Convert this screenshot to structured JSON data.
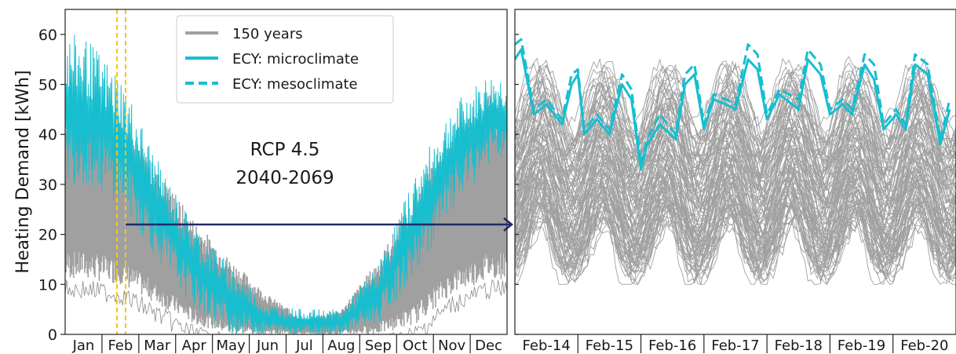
{
  "chart_data": [
    {
      "type": "line",
      "panel": "annual",
      "ylabel": "Heating Demand [kWh]",
      "ylim": [
        0,
        65
      ],
      "yticks": [
        0,
        10,
        20,
        30,
        40,
        50,
        60
      ],
      "categories": [
        "Jan",
        "Feb",
        "Mar",
        "Apr",
        "May",
        "Jun",
        "Jul",
        "Aug",
        "Sep",
        "Oct",
        "Nov",
        "Dec"
      ],
      "annotation": [
        "RCP 4.5",
        "2040-2069"
      ],
      "legend": {
        "position": "top-center",
        "entries": [
          {
            "label": "150 years",
            "color": "#a0a0a0",
            "style": "solid"
          },
          {
            "label": "ECY: microclimate",
            "color": "#17becf",
            "style": "solid"
          },
          {
            "label": "ECY: mesoclimate",
            "color": "#17becf",
            "style": "dashed"
          }
        ]
      },
      "highlight_window": {
        "color": "#f5c518",
        "start": "Feb-14",
        "end": "Feb-20"
      },
      "series": [
        {
          "name": "150 years",
          "color": "#a0a0a0",
          "upper_envelope_by_month": [
            49,
            44,
            33,
            23,
            15,
            8,
            3,
            5,
            15,
            28,
            40,
            48
          ],
          "lower_envelope_by_month": [
            11,
            10,
            6,
            2,
            0,
            0,
            0,
            0,
            0,
            2,
            8,
            11
          ]
        },
        {
          "name": "ECY: microclimate",
          "color": "#17becf",
          "upper_envelope_by_month": [
            60,
            52,
            35,
            22,
            14,
            6,
            5,
            5,
            14,
            32,
            46,
            52
          ],
          "lower_envelope_by_month": [
            30,
            26,
            15,
            5,
            0,
            0,
            0,
            0,
            2,
            12,
            24,
            34
          ]
        }
      ]
    },
    {
      "type": "line",
      "panel": "week",
      "ylim": [
        0,
        65
      ],
      "categories": [
        "Feb-14",
        "Feb-15",
        "Feb-16",
        "Feb-17",
        "Feb-18",
        "Feb-19",
        "Feb-20"
      ],
      "series": [
        {
          "name": "ECY: microclimate",
          "color": "#17becf",
          "style": "solid",
          "x": [
            0,
            0.1,
            0.3,
            0.5,
            0.75,
            0.9,
            1.0,
            1.1,
            1.3,
            1.5,
            1.7,
            1.85,
            2.0,
            2.1,
            2.3,
            2.55,
            2.7,
            2.85,
            3.0,
            3.15,
            3.35,
            3.5,
            3.7,
            3.85,
            4.0,
            4.2,
            4.5,
            4.65,
            4.85,
            5.0,
            5.2,
            5.35,
            5.55,
            5.7,
            5.85,
            6.05,
            6.2,
            6.35,
            6.55,
            6.75,
            6.9
          ],
          "y": [
            55,
            57,
            44,
            46,
            42,
            50,
            52,
            40,
            43,
            40,
            50,
            47,
            33,
            38,
            42,
            39,
            50,
            52,
            41,
            47,
            46,
            45,
            55,
            53,
            43,
            48,
            45,
            55,
            52,
            44,
            46,
            44,
            54,
            51,
            41,
            44,
            41,
            54,
            52,
            38,
            45
          ]
        },
        {
          "name": "ECY: mesoclimate",
          "color": "#17becf",
          "style": "dashed",
          "x": [
            0,
            0.1,
            0.3,
            0.5,
            0.75,
            0.9,
            1.0,
            1.1,
            1.3,
            1.5,
            1.7,
            1.85,
            2.0,
            2.1,
            2.3,
            2.55,
            2.7,
            2.85,
            3.0,
            3.15,
            3.35,
            3.5,
            3.7,
            3.85,
            4.0,
            4.2,
            4.5,
            4.65,
            4.85,
            5.0,
            5.2,
            5.35,
            5.55,
            5.7,
            5.85,
            6.05,
            6.2,
            6.35,
            6.55,
            6.75,
            6.9
          ],
          "y": [
            58,
            59,
            45,
            47,
            43,
            52,
            53,
            41,
            44,
            41,
            52,
            49,
            34,
            39,
            44,
            40,
            52,
            54,
            42,
            48,
            47,
            46,
            58,
            56,
            44,
            49,
            47,
            57,
            54,
            45,
            47,
            45,
            56,
            54,
            42,
            45,
            42,
            56,
            54,
            39,
            47
          ]
        },
        {
          "name": "150 years",
          "color": "#a0a0a0",
          "style": "solid",
          "ensemble_range": [
            10,
            60
          ]
        }
      ]
    }
  ]
}
